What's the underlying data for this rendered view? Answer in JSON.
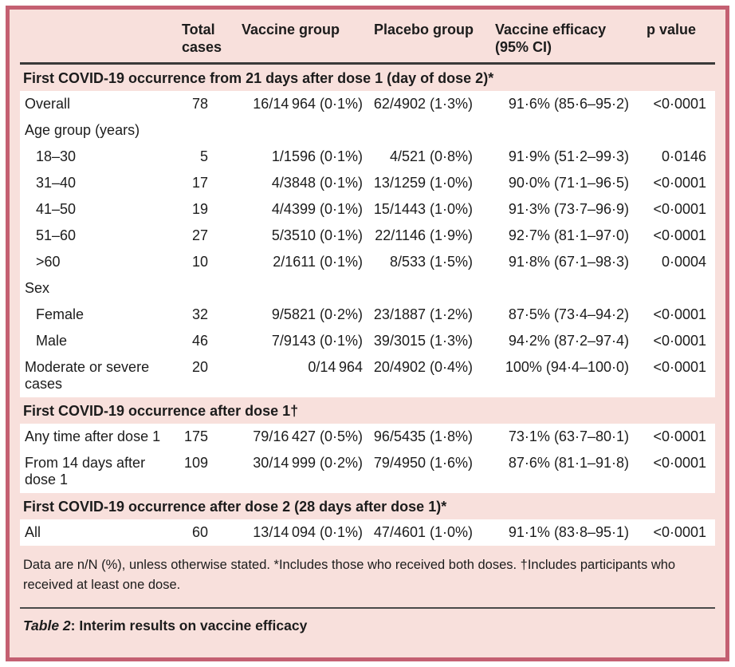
{
  "colors": {
    "card_background": "#f8e0dc",
    "card_border": "#c46072",
    "header_rule": "#3a3a3a",
    "row_background": "#ffffff",
    "text": "#1c1c1c"
  },
  "table": {
    "columns": [
      "",
      "Total cases",
      "Vaccine group",
      "Placebo group",
      "Vaccine efficacy (95% CI)",
      "p value"
    ],
    "rows": [
      {
        "kind": "section",
        "label": "First COVID-19 occurrence from 21 days after dose 1 (day of dose 2)*"
      },
      {
        "kind": "data",
        "label": "Overall",
        "indent": false,
        "values": [
          "78",
          "16/14 964 (0·1%)",
          "62/4902 (1·3%)",
          "91·6% (85·6–95·2)",
          "<0·0001"
        ]
      },
      {
        "kind": "data",
        "label": "Age group (years)",
        "indent": false,
        "values": [
          "",
          "",
          "",
          "",
          ""
        ]
      },
      {
        "kind": "data",
        "label": "18–30",
        "indent": true,
        "values": [
          "5",
          "1/1596 (0·1%)",
          "4/521 (0·8%)",
          "91·9% (51·2–99·3)",
          "0·0146"
        ]
      },
      {
        "kind": "data",
        "label": "31–40",
        "indent": true,
        "values": [
          "17",
          "4/3848 (0·1%)",
          "13/1259 (1·0%)",
          "90·0% (71·1–96·5)",
          "<0·0001"
        ]
      },
      {
        "kind": "data",
        "label": "41–50",
        "indent": true,
        "values": [
          "19",
          "4/4399 (0·1%)",
          "15/1443 (1·0%)",
          "91·3% (73·7–96·9)",
          "<0·0001"
        ]
      },
      {
        "kind": "data",
        "label": "51–60",
        "indent": true,
        "values": [
          "27",
          "5/3510 (0·1%)",
          "22/1146 (1·9%)",
          "92·7% (81·1–97·0)",
          "<0·0001"
        ]
      },
      {
        "kind": "data",
        "label": ">60",
        "indent": true,
        "values": [
          "10",
          "2/1611 (0·1%)",
          "8/533 (1·5%)",
          "91·8% (67·1–98·3)",
          "0·0004"
        ]
      },
      {
        "kind": "data",
        "label": "Sex",
        "indent": false,
        "values": [
          "",
          "",
          "",
          "",
          ""
        ]
      },
      {
        "kind": "data",
        "label": "Female",
        "indent": true,
        "values": [
          "32",
          "9/5821 (0·2%)",
          "23/1887 (1·2%)",
          "87·5% (73·4–94·2)",
          "<0·0001"
        ]
      },
      {
        "kind": "data",
        "label": "Male",
        "indent": true,
        "values": [
          "46",
          "7/9143 (0·1%)",
          "39/3015 (1·3%)",
          "94·2% (87·2–97·4)",
          "<0·0001"
        ]
      },
      {
        "kind": "data",
        "label": "Moderate or severe cases",
        "indent": false,
        "values": [
          "20",
          "0/14 964",
          "20/4902 (0·4%)",
          "100% (94·4–100·0)",
          "<0·0001"
        ]
      },
      {
        "kind": "section",
        "label": "First COVID-19 occurrence after dose 1†"
      },
      {
        "kind": "data",
        "label": "Any time after dose 1",
        "indent": false,
        "values": [
          "175",
          "79/16 427 (0·5%)",
          "96/5435 (1·8%)",
          "73·1% (63·7–80·1)",
          "<0·0001"
        ]
      },
      {
        "kind": "data",
        "label": "From 14 days after dose 1",
        "indent": false,
        "values": [
          "109",
          "30/14 999 (0·2%)",
          "79/4950 (1·6%)",
          "87·6% (81·1–91·8)",
          "<0·0001"
        ]
      },
      {
        "kind": "section",
        "label": "First COVID-19 occurrence after dose 2 (28 days after dose 1)*"
      },
      {
        "kind": "data",
        "label": "All",
        "indent": false,
        "values": [
          "60",
          "13/14 094 (0·1%)",
          "47/4601 (1·0%)",
          "91·1% (83·8–95·1)",
          "<0·0001"
        ]
      }
    ]
  },
  "footnote": "Data are n/N (%), unless otherwise stated. *Includes those who received both doses. †Includes participants who received at least one dose.",
  "caption": {
    "prefix": "Table 2",
    "text": ": Interim results on vaccine efficacy"
  }
}
